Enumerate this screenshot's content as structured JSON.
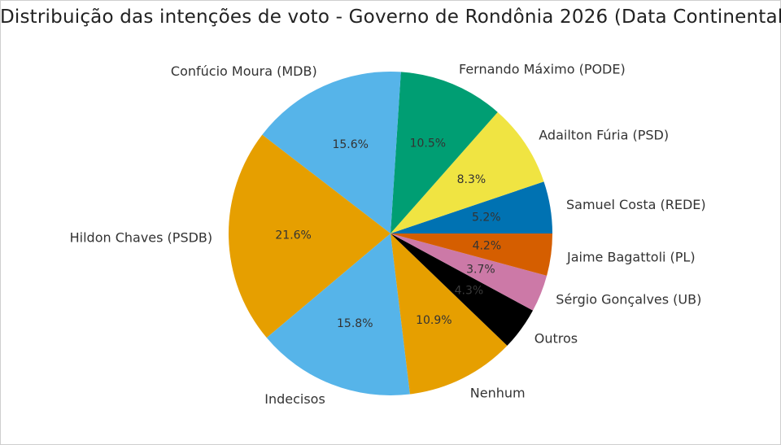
{
  "chart_data": {
    "type": "pie",
    "title": "Distribuição das intenções de voto - Governo de Rondônia 2026 (Data Continental)",
    "start_angle_deg": 0,
    "direction": "counterclockwise",
    "slices": [
      {
        "label": "Samuel Costa (REDE)",
        "value": 5.2,
        "pct_label": "5.2%",
        "color": "#0072b2"
      },
      {
        "label": "Adailton Fúria (PSD)",
        "value": 8.3,
        "pct_label": "8.3%",
        "color": "#f0e442"
      },
      {
        "label": "Fernando Máximo (PODE)",
        "value": 10.5,
        "pct_label": "10.5%",
        "color": "#009e73"
      },
      {
        "label": "Confúcio Moura (MDB)",
        "value": 15.6,
        "pct_label": "15.6%",
        "color": "#56b4e9"
      },
      {
        "label": "Hildon Chaves (PSDB)",
        "value": 21.6,
        "pct_label": "21.6%",
        "color": "#e69f00"
      },
      {
        "label": "Indecisos",
        "value": 15.8,
        "pct_label": "15.8%",
        "color": "#56b4e9"
      },
      {
        "label": "Nenhum",
        "value": 10.9,
        "pct_label": "10.9%",
        "color": "#e69f00"
      },
      {
        "label": "Outros",
        "value": 4.3,
        "pct_label": "4.3%",
        "color": "#000000"
      },
      {
        "label": "Sérgio Gonçalves (UB)",
        "value": 3.7,
        "pct_label": "3.7%",
        "color": "#cc79a7"
      },
      {
        "label": "Jaime Bagattoli (PL)",
        "value": 4.2,
        "pct_label": "4.2%",
        "color": "#d55e00"
      }
    ]
  }
}
